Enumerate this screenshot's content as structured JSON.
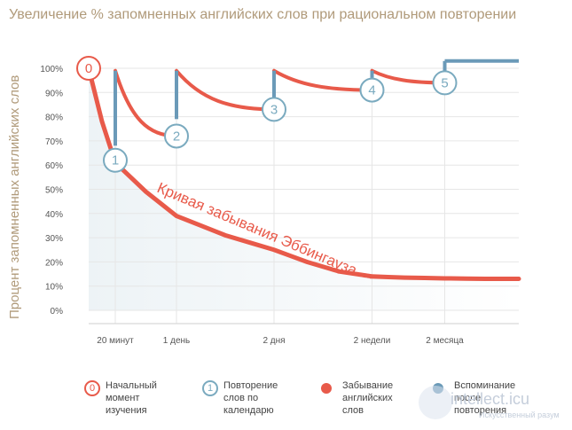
{
  "chart_data": {
    "type": "line",
    "title": "Увеличение % запомненных английских слов при рациональном повторении",
    "ylabel": "Процент запомненных английских слов",
    "ylim": [
      0,
      100
    ],
    "y_ticks": [
      "100%",
      "90%",
      "80%",
      "70%",
      "60%",
      "50%",
      "40%",
      "30%",
      "20%",
      "10%",
      "0%"
    ],
    "x_categories": [
      "20 минут",
      "1 день",
      "2 дня",
      "2 недели",
      "2 месяца"
    ],
    "curve_label": "Кривая забывания Эббингауза",
    "ebbinghaus_curve": [
      {
        "x": 0.0,
        "y": 100
      },
      {
        "x": 0.5,
        "y": 78
      },
      {
        "x": 1.0,
        "y": 61
      },
      {
        "x": 1.5,
        "y": 49
      },
      {
        "x": 2.0,
        "y": 39
      },
      {
        "x": 2.5,
        "y": 31
      },
      {
        "x": 3.0,
        "y": 25
      },
      {
        "x": 3.5,
        "y": 20
      },
      {
        "x": 4.0,
        "y": 16
      },
      {
        "x": 4.5,
        "y": 14
      },
      {
        "x": 5.0,
        "y": 13.5
      },
      {
        "x": 5.5,
        "y": 13.2
      },
      {
        "x": 6.0,
        "y": 13
      },
      {
        "x": 6.5,
        "y": 13
      },
      {
        "x": 7.0,
        "y": 13
      }
    ],
    "forgetting_segments": [
      {
        "from_x": 1,
        "to_x": 2,
        "from_y": 99,
        "to_y": 72
      },
      {
        "from_x": 2,
        "to_x": 3,
        "from_y": 99,
        "to_y": 83
      },
      {
        "from_x": 3,
        "to_x": 4.5,
        "from_y": 99,
        "to_y": 91
      },
      {
        "from_x": 4.5,
        "to_x": 5.5,
        "from_y": 99,
        "to_y": 94
      }
    ],
    "recall_bars": [
      {
        "x": 1,
        "from_y": 68,
        "to_y": 99
      },
      {
        "x": 2,
        "from_y": 79,
        "to_y": 99
      },
      {
        "x": 3,
        "from_y": 88,
        "to_y": 99
      },
      {
        "x": 4.5,
        "from_y": 96,
        "to_y": 99
      },
      {
        "x": 5.5,
        "from_y": 98,
        "to_y": 103
      }
    ],
    "markers": [
      {
        "label": "0",
        "x": 0,
        "y": 100,
        "kind": "start"
      },
      {
        "label": "1",
        "x": 1,
        "y": 62,
        "kind": "repeat"
      },
      {
        "label": "2",
        "x": 2,
        "y": 72,
        "kind": "repeat"
      },
      {
        "label": "3",
        "x": 3,
        "y": 83,
        "kind": "repeat"
      },
      {
        "label": "4",
        "x": 4.5,
        "y": 91,
        "kind": "repeat"
      },
      {
        "label": "5",
        "x": 5.5,
        "y": 94,
        "kind": "repeat"
      }
    ],
    "colors": {
      "forgetting": "#e85a4a",
      "recall": "#6b9ab8",
      "start_marker": "#e85a4a",
      "repeat_marker": "#7aaabf",
      "grid": "#e6e6e6",
      "area": "#edf3f6"
    },
    "grid": true
  },
  "legend": [
    {
      "icon": "0",
      "text": "Начальный момент изучения",
      "kind": "start"
    },
    {
      "icon": "1",
      "text": "Повторение слов по календарю",
      "kind": "repeat"
    },
    {
      "icon": "",
      "text": "Забывание английских слов",
      "kind": "forget"
    },
    {
      "icon": "",
      "text": "Вспоминание после повторения",
      "kind": "recall"
    }
  ],
  "watermark": {
    "brand": "intellect.icu",
    "sub": "Искусственный разум"
  }
}
